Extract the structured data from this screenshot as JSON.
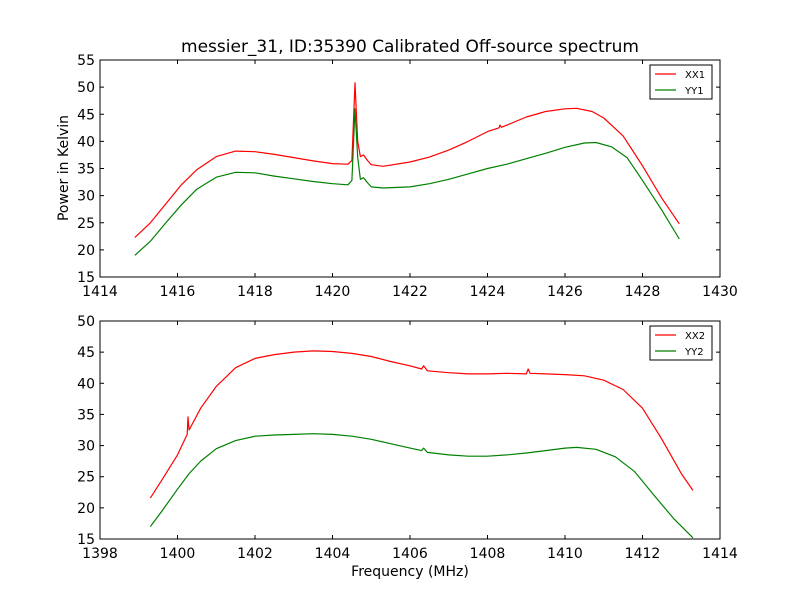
{
  "chart_data": [
    {
      "type": "line",
      "title": "messier_31, ID:35390 Calibrated Off-source spectrum",
      "xlabel": "",
      "ylabel": "Power in Kelvin",
      "xlim": [
        1414,
        1430
      ],
      "ylim": [
        15,
        55
      ],
      "xticks": [
        1414,
        1416,
        1418,
        1420,
        1422,
        1424,
        1426,
        1428,
        1430
      ],
      "yticks": [
        15,
        20,
        25,
        30,
        35,
        40,
        45,
        50,
        55
      ],
      "grid": false,
      "legend_position": "top-right",
      "series": [
        {
          "name": "XX1",
          "color": "#ff0000",
          "points": [
            [
              1414.9,
              22.3
            ],
            [
              1415.3,
              25.0
            ],
            [
              1415.7,
              28.5
            ],
            [
              1416.1,
              32.0
            ],
            [
              1416.5,
              34.8
            ],
            [
              1417.0,
              37.2
            ],
            [
              1417.5,
              38.2
            ],
            [
              1418.0,
              38.1
            ],
            [
              1418.5,
              37.6
            ],
            [
              1419.0,
              37.0
            ],
            [
              1419.5,
              36.4
            ],
            [
              1420.0,
              35.9
            ],
            [
              1420.4,
              35.8
            ],
            [
              1420.5,
              36.5
            ],
            [
              1420.58,
              50.8
            ],
            [
              1420.65,
              40.0
            ],
            [
              1420.72,
              37.2
            ],
            [
              1420.8,
              37.5
            ],
            [
              1420.9,
              36.5
            ],
            [
              1421.0,
              35.7
            ],
            [
              1421.3,
              35.4
            ],
            [
              1422.0,
              36.2
            ],
            [
              1422.5,
              37.1
            ],
            [
              1423.0,
              38.4
            ],
            [
              1423.5,
              40.0
            ],
            [
              1424.0,
              41.8
            ],
            [
              1424.3,
              42.5
            ],
            [
              1424.32,
              43.0
            ],
            [
              1424.36,
              42.6
            ],
            [
              1424.5,
              43.0
            ],
            [
              1425.0,
              44.5
            ],
            [
              1425.5,
              45.5
            ],
            [
              1426.0,
              46.0
            ],
            [
              1426.3,
              46.1
            ],
            [
              1426.7,
              45.5
            ],
            [
              1427.0,
              44.3
            ],
            [
              1427.5,
              41.0
            ],
            [
              1428.0,
              35.5
            ],
            [
              1428.5,
              29.5
            ],
            [
              1428.95,
              24.8
            ]
          ]
        },
        {
          "name": "YY1",
          "color": "#008000",
          "points": [
            [
              1414.9,
              19.0
            ],
            [
              1415.3,
              21.6
            ],
            [
              1415.7,
              25.0
            ],
            [
              1416.1,
              28.3
            ],
            [
              1416.5,
              31.2
            ],
            [
              1417.0,
              33.4
            ],
            [
              1417.5,
              34.3
            ],
            [
              1418.0,
              34.2
            ],
            [
              1418.5,
              33.6
            ],
            [
              1419.0,
              33.1
            ],
            [
              1419.5,
              32.6
            ],
            [
              1420.0,
              32.2
            ],
            [
              1420.4,
              32.0
            ],
            [
              1420.5,
              32.8
            ],
            [
              1420.58,
              46.0
            ],
            [
              1420.65,
              37.0
            ],
            [
              1420.72,
              33.0
            ],
            [
              1420.8,
              33.3
            ],
            [
              1420.9,
              32.4
            ],
            [
              1421.0,
              31.6
            ],
            [
              1421.3,
              31.4
            ],
            [
              1422.0,
              31.6
            ],
            [
              1422.5,
              32.2
            ],
            [
              1423.0,
              33.0
            ],
            [
              1423.5,
              34.0
            ],
            [
              1424.0,
              35.0
            ],
            [
              1424.5,
              35.8
            ],
            [
              1425.0,
              36.8
            ],
            [
              1425.5,
              37.8
            ],
            [
              1426.0,
              38.9
            ],
            [
              1426.5,
              39.7
            ],
            [
              1426.8,
              39.8
            ],
            [
              1427.2,
              39.0
            ],
            [
              1427.6,
              37.0
            ],
            [
              1428.0,
              32.8
            ],
            [
              1428.5,
              27.3
            ],
            [
              1428.95,
              22.0
            ]
          ]
        }
      ]
    },
    {
      "type": "line",
      "title": "",
      "xlabel": "Frequency (MHz)",
      "ylabel": "",
      "xlim": [
        1398,
        1414
      ],
      "ylim": [
        15,
        50
      ],
      "xticks": [
        1398,
        1400,
        1402,
        1404,
        1406,
        1408,
        1410,
        1412,
        1414
      ],
      "yticks": [
        15,
        20,
        25,
        30,
        35,
        40,
        45,
        50
      ],
      "grid": false,
      "legend_position": "top-right",
      "series": [
        {
          "name": "XX2",
          "color": "#ff0000",
          "points": [
            [
              1399.3,
              21.6
            ],
            [
              1399.6,
              24.5
            ],
            [
              1400.0,
              28.5
            ],
            [
              1400.25,
              31.8
            ],
            [
              1400.27,
              34.6
            ],
            [
              1400.3,
              32.5
            ],
            [
              1400.6,
              36.0
            ],
            [
              1401.0,
              39.5
            ],
            [
              1401.5,
              42.5
            ],
            [
              1402.0,
              44.0
            ],
            [
              1402.5,
              44.6
            ],
            [
              1403.0,
              45.0
            ],
            [
              1403.5,
              45.2
            ],
            [
              1404.0,
              45.1
            ],
            [
              1404.5,
              44.8
            ],
            [
              1405.0,
              44.3
            ],
            [
              1405.5,
              43.5
            ],
            [
              1406.0,
              42.8
            ],
            [
              1406.3,
              42.3
            ],
            [
              1406.35,
              42.8
            ],
            [
              1406.45,
              42.0
            ],
            [
              1407.0,
              41.7
            ],
            [
              1407.5,
              41.5
            ],
            [
              1408.0,
              41.5
            ],
            [
              1408.5,
              41.6
            ],
            [
              1409.0,
              41.5
            ],
            [
              1409.05,
              42.3
            ],
            [
              1409.1,
              41.6
            ],
            [
              1409.5,
              41.5
            ],
            [
              1410.0,
              41.4
            ],
            [
              1410.5,
              41.2
            ],
            [
              1411.0,
              40.5
            ],
            [
              1411.5,
              39.0
            ],
            [
              1412.0,
              36.0
            ],
            [
              1412.5,
              31.0
            ],
            [
              1413.0,
              25.5
            ],
            [
              1413.3,
              22.8
            ]
          ]
        },
        {
          "name": "YY2",
          "color": "#008000",
          "points": [
            [
              1399.3,
              17.0
            ],
            [
              1399.6,
              19.5
            ],
            [
              1400.0,
              23.0
            ],
            [
              1400.3,
              25.5
            ],
            [
              1400.6,
              27.5
            ],
            [
              1401.0,
              29.5
            ],
            [
              1401.5,
              30.8
            ],
            [
              1402.0,
              31.5
            ],
            [
              1402.5,
              31.7
            ],
            [
              1403.0,
              31.8
            ],
            [
              1403.5,
              31.9
            ],
            [
              1404.0,
              31.8
            ],
            [
              1404.5,
              31.5
            ],
            [
              1405.0,
              31.0
            ],
            [
              1405.5,
              30.3
            ],
            [
              1406.0,
              29.6
            ],
            [
              1406.3,
              29.2
            ],
            [
              1406.35,
              29.6
            ],
            [
              1406.45,
              28.9
            ],
            [
              1407.0,
              28.5
            ],
            [
              1407.5,
              28.3
            ],
            [
              1408.0,
              28.3
            ],
            [
              1408.5,
              28.5
            ],
            [
              1409.0,
              28.8
            ],
            [
              1409.5,
              29.2
            ],
            [
              1410.0,
              29.6
            ],
            [
              1410.3,
              29.7
            ],
            [
              1410.8,
              29.4
            ],
            [
              1411.3,
              28.2
            ],
            [
              1411.8,
              25.8
            ],
            [
              1412.3,
              22.0
            ],
            [
              1412.8,
              18.3
            ],
            [
              1413.3,
              15.2
            ]
          ]
        }
      ]
    }
  ]
}
